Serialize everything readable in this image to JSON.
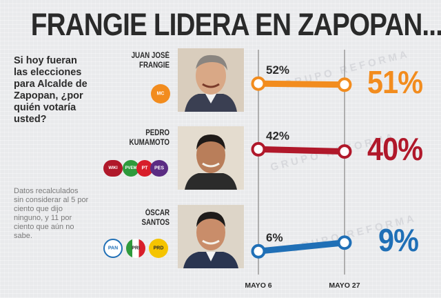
{
  "title": "FRANGIE LIDERA EN ZAPOPAN...",
  "question": "Si hoy fueran las elecciones para Alcalde de Zapopan, ¿por quién votaría usted?",
  "footnote": "Datos recalculados sin considerar al 5 por ciento que dijo ninguno, y 11 por ciento que aún no sabe.",
  "watermark": "GRUPO REFORMA",
  "chart_data": {
    "type": "line",
    "title": "FRANGIE LIDERA EN ZAPOPAN...",
    "categories": [
      "MAYO 6",
      "MAYO 27"
    ],
    "series": [
      {
        "name": "JUAN JOSÉ FRANGIE",
        "values": [
          52,
          51
        ],
        "color": "#f28c1e",
        "label_start": "52%",
        "label_end": "51%"
      },
      {
        "name": "PEDRO KUMAMOTO",
        "values": [
          42,
          40
        ],
        "color": "#b0182a",
        "label_start": "42%",
        "label_end": "40%"
      },
      {
        "name": "ÓSCAR SANTOS",
        "values": [
          6,
          9
        ],
        "color": "#1f6fb6",
        "label_start": "6%",
        "label_end": "9%"
      }
    ],
    "unit": "%"
  },
  "candidates": [
    {
      "name_line1": "JUAN JOSÉ",
      "name_line2": "FRANGIE",
      "party_logos": [
        "MC"
      ]
    },
    {
      "name_line1": "PEDRO",
      "name_line2": "KUMAMOTO",
      "party_logos": [
        "WIKI",
        "PVEM",
        "PT",
        "PES"
      ]
    },
    {
      "name_line1": "ÓSCAR",
      "name_line2": "SANTOS",
      "party_logos": [
        "PAN",
        "PRI",
        "PRD"
      ]
    }
  ],
  "colors": {
    "mc": "#f28c1e",
    "morena": "#b0182a",
    "pan": "#1f6fb6",
    "axis": "#9a9a9a"
  }
}
